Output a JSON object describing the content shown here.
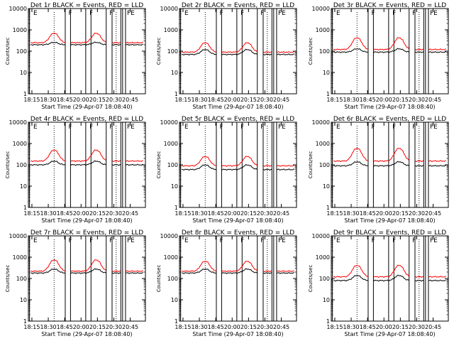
{
  "chart_data": {
    "type": "line",
    "x_tick_labels": [
      "18:15",
      "18:30",
      "18:45",
      "20:00",
      "20:15",
      "20:30",
      "20:45"
    ],
    "xlabel": "Start Time (29-Apr-07 18:08:40)",
    "ylabel": "Counts/sec",
    "y_scale": "log",
    "ylim": [
      1,
      10000
    ],
    "y_tick_labels": [
      "1",
      "10",
      "100",
      "1000",
      "10000"
    ],
    "flag_labels": [
      "E",
      "F",
      "F",
      "F",
      "FE"
    ],
    "panels": [
      {
        "title": "Det 1r BLACK = Events, RED = LLD",
        "red_base": 250,
        "red_peak": 700,
        "black_base": 200,
        "black_peak": 260
      },
      {
        "title": "Det 2r BLACK = Events, RED = LLD",
        "red_base": 90,
        "red_peak": 250,
        "black_base": 70,
        "black_peak": 120
      },
      {
        "title": "Det 3r BLACK = Events, RED = LLD",
        "red_base": 120,
        "red_peak": 430,
        "black_base": 90,
        "black_peak": 130
      },
      {
        "title": "Det 4r BLACK = Events, RED = LLD",
        "red_base": 150,
        "red_peak": 500,
        "black_base": 100,
        "black_peak": 150
      },
      {
        "title": "Det 5r BLACK = Events, RED = LLD",
        "red_base": 90,
        "red_peak": 250,
        "black_base": 60,
        "black_peak": 100
      },
      {
        "title": "Det 6r BLACK = Events, RED = LLD",
        "red_base": 150,
        "red_peak": 600,
        "black_base": 90,
        "black_peak": 140
      },
      {
        "title": "Det 7r BLACK = Events, RED = LLD",
        "red_base": 220,
        "red_peak": 750,
        "black_base": 180,
        "black_peak": 280
      },
      {
        "title": "Det 8r BLACK = Events, RED = LLD",
        "red_base": 220,
        "red_peak": 650,
        "black_base": 180,
        "black_peak": 280
      },
      {
        "title": "Det 9r BLACK = Events, RED = LLD",
        "red_base": 120,
        "red_peak": 420,
        "black_base": 80,
        "black_peak": 140
      }
    ],
    "colors": {
      "events": "#000000",
      "lld": "#ff0000",
      "background": "#ffffff"
    }
  }
}
